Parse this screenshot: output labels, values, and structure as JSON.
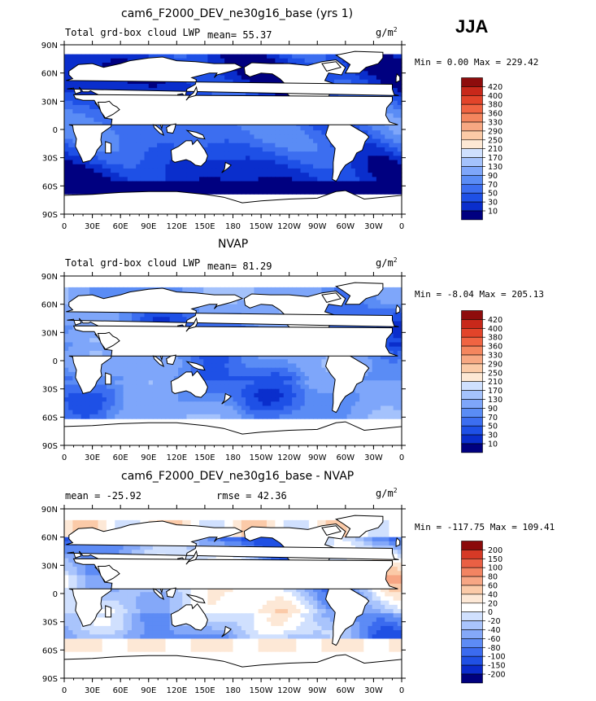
{
  "season": "JJA",
  "palettes": {
    "lwp": [
      "#000080",
      "#0a2ecc",
      "#1e50e6",
      "#3c6ef0",
      "#5a8cf5",
      "#7ea6fa",
      "#a4c2fc",
      "#cfe0fe",
      "#fde8d4",
      "#fbcaa6",
      "#f7a882",
      "#f4865e",
      "#f06442",
      "#e2442a",
      "#c8281a",
      "#8e0c0c"
    ],
    "diff": [
      "#00007e",
      "#0b2bcb",
      "#2050e4",
      "#3b6bef",
      "#5d8bf5",
      "#84a8f9",
      "#a9c4fc",
      "#d0e0fe",
      "#ffffff",
      "#fde8d6",
      "#fbcaa8",
      "#f7a684",
      "#f28462",
      "#ea6044",
      "#d63a26",
      "#8b0a0a"
    ]
  },
  "panels": [
    {
      "title": "cam6_F2000_DEV_ne30g16_base (yrs 1)",
      "left_text": "Total grd-box cloud LWP",
      "mean_text": "mean=  55.37",
      "units_base": "g/m",
      "units_exp": "2",
      "minmax": "Min =   0.00 Max = 229.42",
      "colorbar_labels": [
        "420",
        "400",
        "380",
        "360",
        "330",
        "290",
        "250",
        "210",
        "170",
        "130",
        "90",
        "70",
        "50",
        "30",
        "10"
      ],
      "palette": "lwp",
      "field": "model"
    },
    {
      "title": "NVAP",
      "left_text": "Total grd-box cloud LWP",
      "mean_text": "mean=  81.29",
      "units_base": "g/m",
      "units_exp": "2",
      "minmax": "Min =  -8.04 Max = 205.13",
      "colorbar_labels": [
        "420",
        "400",
        "380",
        "360",
        "330",
        "290",
        "250",
        "210",
        "170",
        "130",
        "90",
        "70",
        "50",
        "30",
        "10"
      ],
      "palette": "lwp",
      "field": "obs"
    },
    {
      "title": "cam6_F2000_DEV_ne30g16_base - NVAP",
      "left_text": "mean = -25.92",
      "mean_text": "rmse =  42.36",
      "units_base": "g/m",
      "units_exp": "2",
      "minmax": "Min = -117.75 Max = 109.41",
      "colorbar_labels": [
        "200",
        "150",
        "100",
        "80",
        "60",
        "40",
        "20",
        "0",
        "-20",
        "-40",
        "-60",
        "-80",
        "-100",
        "-150",
        "-200"
      ],
      "palette": "diff",
      "field": "diff"
    }
  ],
  "lat_ticks": [
    "90N",
    "60N",
    "30N",
    "0",
    "30S",
    "60S",
    "90S"
  ],
  "lon_ticks": [
    "0",
    "30E",
    "60E",
    "90E",
    "120E",
    "150E",
    "180",
    "150W",
    "120W",
    "90W",
    "60W",
    "30W",
    "0"
  ],
  "chart_data": [
    {
      "type": "heatmap",
      "title": "cam6_F2000_DEV_ne30g16_base (yrs 1)",
      "variable": "Total grd-box cloud LWP",
      "units": "g/m^2",
      "mean": 55.37,
      "min": 0.0,
      "max": 229.42,
      "x_range": [
        0,
        360
      ],
      "y_range": [
        -90,
        90
      ],
      "levels": [
        10,
        30,
        50,
        70,
        90,
        130,
        170,
        210,
        250,
        290,
        330,
        360,
        380,
        400,
        420
      ]
    },
    {
      "type": "heatmap",
      "title": "NVAP",
      "variable": "Total grd-box cloud LWP",
      "units": "g/m^2",
      "mean": 81.29,
      "min": -8.04,
      "max": 205.13,
      "x_range": [
        0,
        360
      ],
      "y_range": [
        -90,
        90
      ],
      "levels": [
        10,
        30,
        50,
        70,
        90,
        130,
        170,
        210,
        250,
        290,
        330,
        360,
        380,
        400,
        420
      ]
    },
    {
      "type": "heatmap",
      "title": "cam6_F2000_DEV_ne30g16_base - NVAP",
      "units": "g/m^2",
      "mean": -25.92,
      "rmse": 42.36,
      "min": -117.75,
      "max": 109.41,
      "x_range": [
        0,
        360
      ],
      "y_range": [
        -90,
        90
      ],
      "levels": [
        -200,
        -150,
        -100,
        -80,
        -60,
        -40,
        -20,
        0,
        20,
        40,
        60,
        80,
        100,
        150,
        200
      ]
    }
  ]
}
